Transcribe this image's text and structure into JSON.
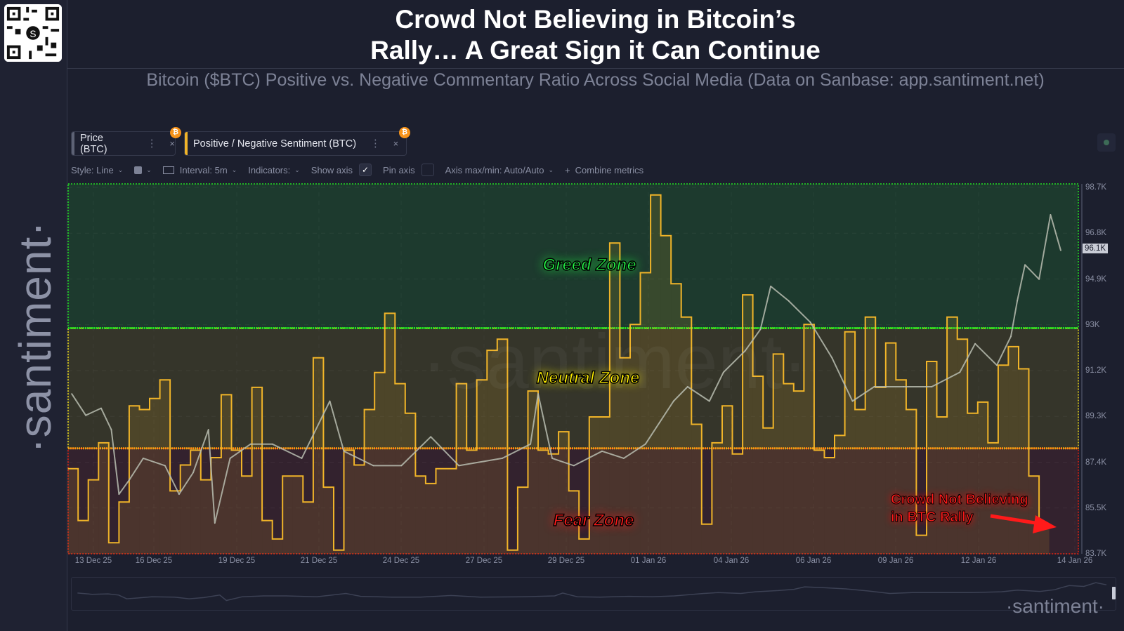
{
  "header": {
    "title_line1": "Crowd Not Believing in Bitcoin’s",
    "title_line2": "Rally… A Great Sign it Can Continue",
    "subtitle": "Bitcoin ($BTC) Positive vs. Negative Commentary Ratio Across Social Media (Data on Sanbase: app.santiment.net)"
  },
  "branding": {
    "sidebar_logo_text": "·santiment·",
    "watermark": "·santiment·",
    "footer_logo": "·santiment·",
    "qr_code_logo": "S"
  },
  "metric_tabs": [
    {
      "label": "Price (BTC)",
      "color": "#5d6275",
      "badge_icon": "bitcoin-icon",
      "badge_text": "₿",
      "menu_icon": "⋮",
      "close_icon": "×"
    },
    {
      "label": "Positive / Negative Sentiment (BTC)",
      "color": "#f0b429",
      "badge_icon": "bitcoin-icon",
      "badge_text": "₿",
      "menu_icon": "⋮",
      "close_icon": "×"
    }
  ],
  "toolbar": {
    "style": "Style: Line",
    "interval": "Interval: 5m",
    "indicators": "Indicators:",
    "show_axis": "Show axis",
    "show_axis_checked": true,
    "check_mark": "✓",
    "pin_axis": "Pin axis",
    "pin_axis_checked": false,
    "axis_maxmin": "Axis max/min: Auto/Auto",
    "combine_plus": "+",
    "combine_metrics": "Combine metrics",
    "chevron": "⌄"
  },
  "annotations": {
    "greed": "Greed Zone",
    "neutral": "Neutral Zone",
    "fear": "Fear Zone",
    "note_line1": "Crowd Not Believing",
    "note_line2": "in BTC Rally"
  },
  "colors": {
    "greed_zone": "#1d3a2e",
    "neutral_zone": "#35352a",
    "fear_zone": "#33222e",
    "greed_border": "#22e022",
    "neutral_border": "#f5e11a",
    "fear_border": "#e8200f",
    "sentiment_line": "#f0b429",
    "price_line": "#b9bdb0",
    "annotation_red": "#ff1a1a"
  },
  "chart_data": {
    "type": "line",
    "y_axis": {
      "ticks": [
        "98.7K",
        "96.8K",
        "94.9K",
        "93K",
        "91.2K",
        "89.3K",
        "87.4K",
        "85.5K",
        "83.7K"
      ],
      "range": [
        83700,
        98700
      ],
      "current_value_label": "96.1K"
    },
    "x_axis": {
      "ticks": [
        "13 Dec 25",
        "16 Dec 25",
        "19 Dec 25",
        "21 Dec 25",
        "24 Dec 25",
        "27 Dec 25",
        "29 Dec 25",
        "01 Jan 26",
        "04 Jan 26",
        "06 Jan 26",
        "09 Jan 26",
        "12 Jan 26",
        "14 Jan 26"
      ],
      "range": [
        "2025-12-12T04:00",
        "2026-01-14T00:00"
      ]
    },
    "grid": true,
    "zones": [
      {
        "name": "Greed Zone",
        "from": 61,
        "to": 100
      },
      {
        "name": "Neutral Zone",
        "from": 28.5,
        "to": 61
      },
      {
        "name": "Fear Zone",
        "from": 0,
        "to": 28.5
      }
    ],
    "series": [
      {
        "name": "Price (BTC)",
        "style": "line",
        "points": [
          [
            "2025-12-12T07:00",
            90250
          ],
          [
            "2025-12-12T18:00",
            89370
          ],
          [
            "2025-12-13T06:00",
            89660
          ],
          [
            "2025-12-13T14:00",
            88780
          ],
          [
            "2025-12-13T20:00",
            86140
          ],
          [
            "2025-12-14T04:00",
            86720
          ],
          [
            "2025-12-14T15:00",
            87610
          ],
          [
            "2025-12-15T08:00",
            87310
          ],
          [
            "2025-12-15T19:00",
            86140
          ],
          [
            "2025-12-16T06:00",
            87020
          ],
          [
            "2025-12-16T18:00",
            88780
          ],
          [
            "2025-12-16T23:00",
            84960
          ],
          [
            "2025-12-17T11:00",
            87610
          ],
          [
            "2025-12-18T03:00",
            88190
          ],
          [
            "2025-12-18T20:00",
            88190
          ],
          [
            "2025-12-19T19:00",
            87610
          ],
          [
            "2025-12-20T17:00",
            89950
          ],
          [
            "2025-12-21T04:00",
            87900
          ],
          [
            "2025-12-22T03:00",
            87310
          ],
          [
            "2025-12-23T01:00",
            87310
          ],
          [
            "2025-12-24T00:00",
            88490
          ],
          [
            "2025-12-24T22:00",
            87310
          ],
          [
            "2025-12-26T08:00",
            87610
          ],
          [
            "2025-12-27T06:00",
            88190
          ],
          [
            "2025-12-27T12:00",
            90250
          ],
          [
            "2025-12-27T23:00",
            87610
          ],
          [
            "2025-12-28T16:00",
            87310
          ],
          [
            "2025-12-29T14:00",
            87900
          ],
          [
            "2025-12-30T07:00",
            87610
          ],
          [
            "2025-12-31T00:00",
            88190
          ],
          [
            "2025-12-31T11:00",
            89070
          ],
          [
            "2025-12-31T22:00",
            89950
          ],
          [
            "2026-01-01T09:00",
            90540
          ],
          [
            "2026-01-02T02:00",
            89950
          ],
          [
            "2026-01-02T13:00",
            91130
          ],
          [
            "2026-01-03T06:00",
            92010
          ],
          [
            "2026-01-03T18:00",
            92890
          ],
          [
            "2026-01-04T02:00",
            94650
          ],
          [
            "2026-01-04T16:00",
            94060
          ],
          [
            "2026-01-05T09:00",
            93180
          ],
          [
            "2026-01-06T02:00",
            91720
          ],
          [
            "2026-01-06T18:00",
            89950
          ],
          [
            "2026-01-07T11:00",
            90540
          ],
          [
            "2026-01-08T10:00",
            90540
          ],
          [
            "2026-01-09T08:00",
            90540
          ],
          [
            "2026-01-10T06:00",
            91130
          ],
          [
            "2026-01-10T18:00",
            92300
          ],
          [
            "2026-01-11T11:00",
            91420
          ],
          [
            "2026-01-11T22:00",
            92600
          ],
          [
            "2026-01-12T03:00",
            94060
          ],
          [
            "2026-01-12T09:00",
            95530
          ],
          [
            "2026-01-12T20:00",
            94940
          ],
          [
            "2026-01-13T05:00",
            97580
          ],
          [
            "2026-01-13T13:00",
            96120
          ]
        ]
      },
      {
        "name": "Positive / Negative Sentiment (BTC)",
        "style": "step",
        "start": "2025-12-12T04:00",
        "interval_hours": 8,
        "scale": "relative 0–100 (axis hidden)",
        "values": [
          23,
          9,
          20,
          30,
          3,
          14,
          40,
          39,
          42,
          47,
          17,
          24,
          28,
          20,
          26,
          43,
          28,
          21,
          45,
          9,
          4,
          21,
          21,
          14,
          53,
          18,
          1,
          28,
          24,
          39,
          49,
          65,
          46,
          38,
          21,
          19,
          23,
          23,
          46,
          28,
          47,
          55,
          58,
          1,
          18,
          44,
          28,
          27,
          33,
          17,
          4,
          37,
          37,
          84,
          53,
          62,
          76,
          97,
          86,
          73,
          64,
          35,
          8,
          30,
          40,
          27,
          70,
          48,
          34,
          54,
          46,
          44,
          62,
          28,
          26,
          32,
          60,
          39,
          64,
          45,
          57,
          47,
          39,
          5,
          52,
          37,
          64,
          58,
          38,
          41,
          30,
          51,
          56,
          50,
          21,
          8
        ]
      }
    ]
  }
}
